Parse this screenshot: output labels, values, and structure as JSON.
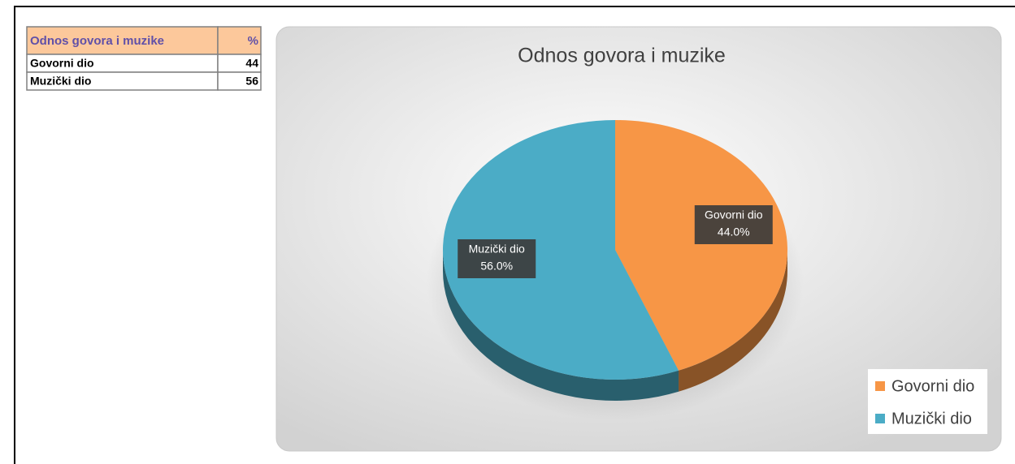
{
  "table": {
    "header": [
      "Odnos govora i muzike",
      "%"
    ],
    "rows": [
      [
        "Govorni dio",
        44
      ],
      [
        "Muzički dio",
        56
      ]
    ]
  },
  "chart_data": {
    "type": "pie",
    "title": "Odnos govora i muzike",
    "categories": [
      "Govorni dio",
      "Muzički dio"
    ],
    "values": [
      44,
      56
    ],
    "value_labels": [
      "44.0%",
      "56.0%"
    ],
    "colors": [
      "#f79646",
      "#4bacc6"
    ],
    "legend": "bottom-right"
  }
}
